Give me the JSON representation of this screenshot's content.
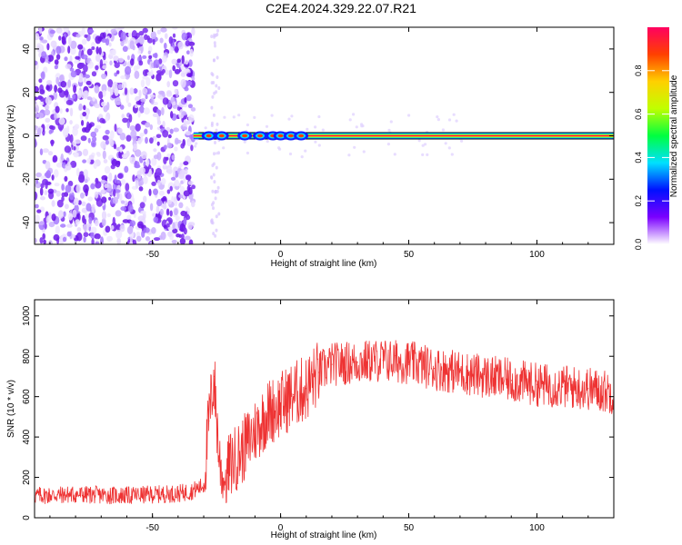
{
  "page_title": "C2E4.2024.329.22.07.R21",
  "colors": {
    "snr_line": "#ee3333",
    "noise_purple": "#7a2bf0",
    "axis": "#000000"
  },
  "colorbar": {
    "label": "Normalized spectral amplitude",
    "ticks": [
      "0.0",
      "0.2",
      "0.4",
      "0.6",
      "0.8"
    ],
    "tick_values": [
      0.0,
      0.2,
      0.4,
      0.6,
      0.8
    ],
    "range": [
      0,
      1
    ],
    "colormap": [
      "#ffffff",
      "#7b00ff",
      "#0010ff",
      "#00e0ff",
      "#00ff40",
      "#c0ff00",
      "#ffd000",
      "#ff4000",
      "#ff0060"
    ]
  },
  "chart_data": [
    {
      "type": "heatmap",
      "title": "",
      "xlabel": "Height of straight line (km)",
      "ylabel": "Frequency (Hz)",
      "xlim": [
        -96,
        130
      ],
      "ylim": [
        -50,
        50
      ],
      "xticks": [
        -50,
        0,
        50,
        100
      ],
      "yticks": [
        -40,
        -20,
        0,
        20,
        40
      ],
      "xtick_labels": [
        "-50",
        "0",
        "50",
        "100"
      ],
      "ytick_labels": [
        "-40",
        "-20",
        "0",
        "20",
        "40"
      ],
      "noise_region_km": [
        -96,
        -34
      ],
      "signal_band_hz": [
        -1.5,
        1.5
      ],
      "signal_start_km": -34,
      "hotspots_km": [
        -28,
        -23,
        -14,
        -8,
        -3,
        0,
        4,
        8
      ]
    },
    {
      "type": "line",
      "title": "",
      "xlabel": "Height of straight line (km)",
      "ylabel": "SNR (10 * v/v)",
      "xlim": [
        -96,
        130
      ],
      "ylim": [
        0,
        1080
      ],
      "xticks": [
        -50,
        0,
        50,
        100
      ],
      "yticks": [
        0,
        200,
        400,
        600,
        800,
        1000
      ],
      "xtick_labels": [
        "-50",
        "0",
        "50",
        "100"
      ],
      "ytick_labels": [
        "0",
        "200",
        "400",
        "600",
        "800",
        "1000"
      ],
      "series": [
        {
          "color": "#ee3333",
          "x": [
            -96,
            -80,
            -60,
            -40,
            -35,
            -30,
            -28,
            -26,
            -24,
            -22,
            -20,
            -15,
            -10,
            -5,
            0,
            5,
            10,
            15,
            20,
            30,
            40,
            50,
            60,
            70,
            80,
            90,
            100,
            110,
            120,
            130
          ],
          "y": [
            110,
            115,
            110,
            120,
            130,
            160,
            480,
            700,
            300,
            170,
            260,
            330,
            430,
            520,
            560,
            610,
            640,
            720,
            760,
            770,
            780,
            770,
            740,
            720,
            700,
            680,
            660,
            650,
            640,
            620
          ]
        }
      ]
    }
  ]
}
